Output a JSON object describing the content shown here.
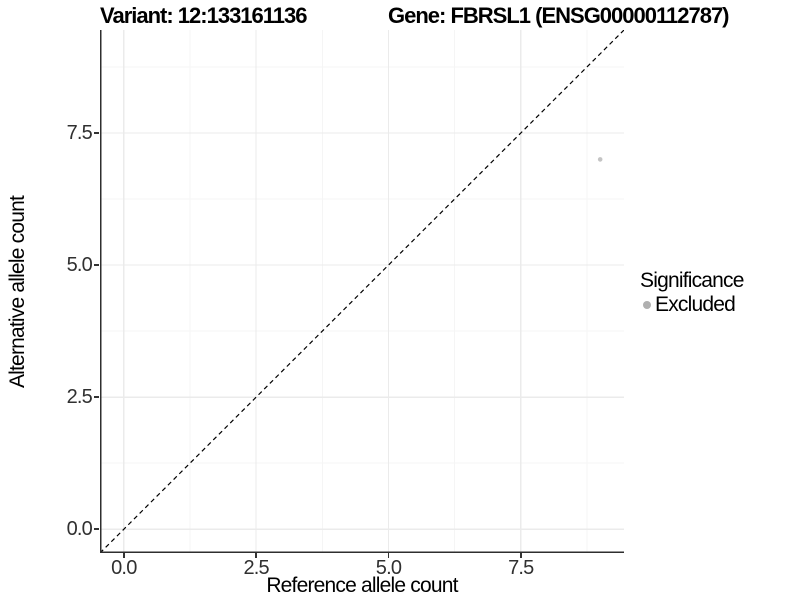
{
  "chart_data": {
    "type": "scatter",
    "titles": {
      "left": "Variant: 12:133161136",
      "right": "Gene: FBRSL1 (ENSG00000112787)"
    },
    "xlabel": "Reference allele count",
    "ylabel": "Alternative allele count",
    "xlim": [
      -0.45,
      9.45
    ],
    "ylim": [
      -0.45,
      9.45
    ],
    "x_ticks": [
      {
        "value": 0.0,
        "label": "0.0"
      },
      {
        "value": 2.5,
        "label": "2.5"
      },
      {
        "value": 5.0,
        "label": "5.0"
      },
      {
        "value": 7.5,
        "label": "7.5"
      }
    ],
    "y_ticks": [
      {
        "value": 0.0,
        "label": "0.0"
      },
      {
        "value": 2.5,
        "label": "2.5"
      },
      {
        "value": 5.0,
        "label": "5.0"
      },
      {
        "value": 7.5,
        "label": "7.5"
      }
    ],
    "x_minor_ticks": [
      1.25,
      3.75,
      6.25,
      8.75
    ],
    "y_minor_ticks": [
      1.25,
      3.75,
      6.25,
      8.75
    ],
    "grid": {
      "enabled": true,
      "major_color": "#ebebeb",
      "minor_color": "#f5f5f5"
    },
    "axis_line_color": "#2e2e2e",
    "identity_line": {
      "style": "dashed",
      "color": "#000000",
      "from": [
        -0.45,
        -0.45
      ],
      "to": [
        9.45,
        9.45
      ]
    },
    "points": [
      {
        "x": 9,
        "y": 7,
        "color": "#c4c4c4",
        "significance": "Excluded"
      }
    ],
    "legend": {
      "title": "Significance",
      "position": "right",
      "entries": [
        {
          "label": "Excluded",
          "color": "#b0b0b0",
          "marker": "circle"
        }
      ]
    }
  }
}
